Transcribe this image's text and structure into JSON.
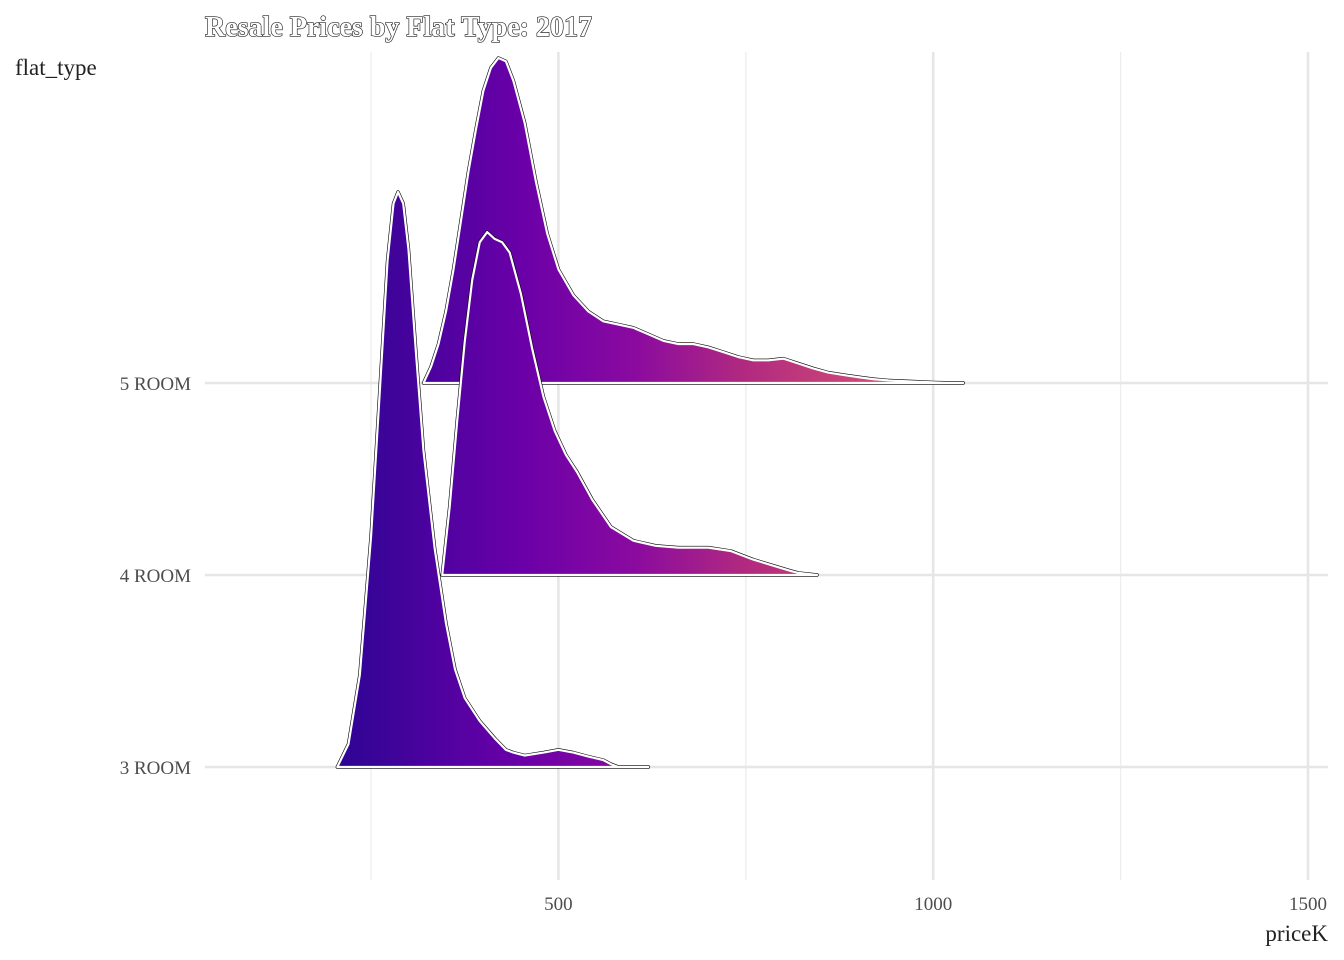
{
  "chart_data": {
    "type": "ridgeline",
    "title": "Resale Prices by Flat Type: 2017",
    "xlabel": "priceK",
    "ylabel": "flat_type",
    "xlim": [
      50,
      1550
    ],
    "x_ticks": [
      500,
      1000,
      1500
    ],
    "x_minor_ticks": [
      250,
      750,
      1250
    ],
    "categories": [
      "3 ROOM",
      "4 ROOM",
      "5 ROOM"
    ],
    "grid": true,
    "color_scale": {
      "type": "gradient-by-x",
      "stops": [
        {
          "x": 200,
          "color": "#2c0594"
        },
        {
          "x": 450,
          "color": "#6a00a8"
        },
        {
          "x": 600,
          "color": "#8a0aa0"
        },
        {
          "x": 750,
          "color": "#b12a7f"
        },
        {
          "x": 900,
          "color": "#cc4778"
        },
        {
          "x": 1040,
          "color": "#e36a4a"
        }
      ]
    },
    "series": [
      {
        "name": "3 ROOM",
        "x": [
          205,
          220,
          235,
          250,
          262,
          272,
          280,
          286,
          293,
          300,
          310,
          320,
          335,
          350,
          362,
          375,
          395,
          415,
          430,
          440,
          455,
          480,
          500,
          520,
          540,
          560,
          570,
          580,
          595,
          605,
          620
        ],
        "density": [
          0.0,
          0.04,
          0.16,
          0.4,
          0.66,
          0.88,
          0.98,
          1.0,
          0.98,
          0.9,
          0.72,
          0.55,
          0.38,
          0.25,
          0.17,
          0.12,
          0.08,
          0.05,
          0.03,
          0.025,
          0.02,
          0.025,
          0.03,
          0.025,
          0.018,
          0.012,
          0.005,
          0.0,
          0.0,
          0.0,
          0.0
        ]
      },
      {
        "name": "4 ROOM",
        "x": [
          345,
          355,
          365,
          375,
          385,
          395,
          405,
          415,
          425,
          435,
          450,
          465,
          480,
          495,
          510,
          525,
          545,
          570,
          600,
          630,
          660,
          700,
          730,
          760,
          790,
          810,
          820,
          845
        ],
        "density": [
          0.0,
          0.2,
          0.45,
          0.68,
          0.86,
          0.97,
          1.0,
          0.98,
          0.97,
          0.94,
          0.82,
          0.66,
          0.52,
          0.42,
          0.35,
          0.3,
          0.22,
          0.14,
          0.1,
          0.085,
          0.08,
          0.08,
          0.07,
          0.045,
          0.025,
          0.012,
          0.006,
          0.0
        ]
      },
      {
        "name": "5 ROOM",
        "x": [
          320,
          330,
          340,
          350,
          360,
          370,
          380,
          390,
          400,
          410,
          420,
          430,
          440,
          455,
          470,
          485,
          500,
          520,
          540,
          560,
          580,
          600,
          620,
          640,
          660,
          680,
          700,
          720,
          740,
          760,
          780,
          800,
          820,
          840,
          860,
          880,
          900,
          920,
          940,
          960,
          980,
          1000,
          1015,
          1040
        ],
        "density": [
          0.0,
          0.05,
          0.12,
          0.22,
          0.35,
          0.5,
          0.65,
          0.78,
          0.9,
          0.97,
          1.0,
          0.99,
          0.93,
          0.8,
          0.62,
          0.46,
          0.35,
          0.27,
          0.22,
          0.19,
          0.18,
          0.17,
          0.15,
          0.13,
          0.12,
          0.12,
          0.11,
          0.095,
          0.08,
          0.07,
          0.07,
          0.075,
          0.06,
          0.045,
          0.032,
          0.025,
          0.018,
          0.012,
          0.008,
          0.006,
          0.004,
          0.002,
          0.001,
          0.0
        ]
      }
    ]
  }
}
